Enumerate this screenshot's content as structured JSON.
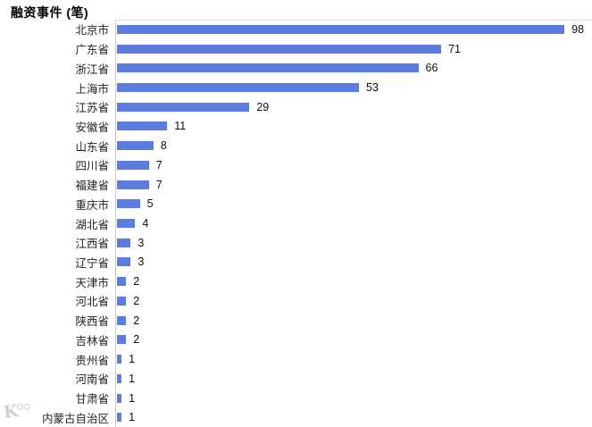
{
  "chart_data": {
    "type": "bar",
    "orientation": "horizontal",
    "title": "融资事件 (笔)",
    "categories": [
      "北京市",
      "广东省",
      "浙江省",
      "上海市",
      "江苏省",
      "安徽省",
      "山东省",
      "四川省",
      "福建省",
      "重庆市",
      "湖北省",
      "江西省",
      "辽宁省",
      "天津市",
      "河北省",
      "陕西省",
      "吉林省",
      "贵州省",
      "河南省",
      "甘肃省",
      "内蒙古自治区"
    ],
    "values": [
      98,
      71,
      66,
      53,
      29,
      11,
      8,
      7,
      7,
      5,
      4,
      3,
      3,
      2,
      2,
      2,
      2,
      1,
      1,
      1,
      1
    ],
    "xlabel": "",
    "ylabel": "",
    "xlim": [
      0,
      104
    ],
    "grid": false,
    "legend": false,
    "value_labels_shown": true,
    "bar_color": "#5b7de1",
    "axis_line_color": "#cccccc",
    "top_border_color": "#dddddd",
    "label_color": "#1f1f1f",
    "value_color": "#0d0d0d"
  },
  "watermark": {
    "icon": "k-circles-logo"
  }
}
